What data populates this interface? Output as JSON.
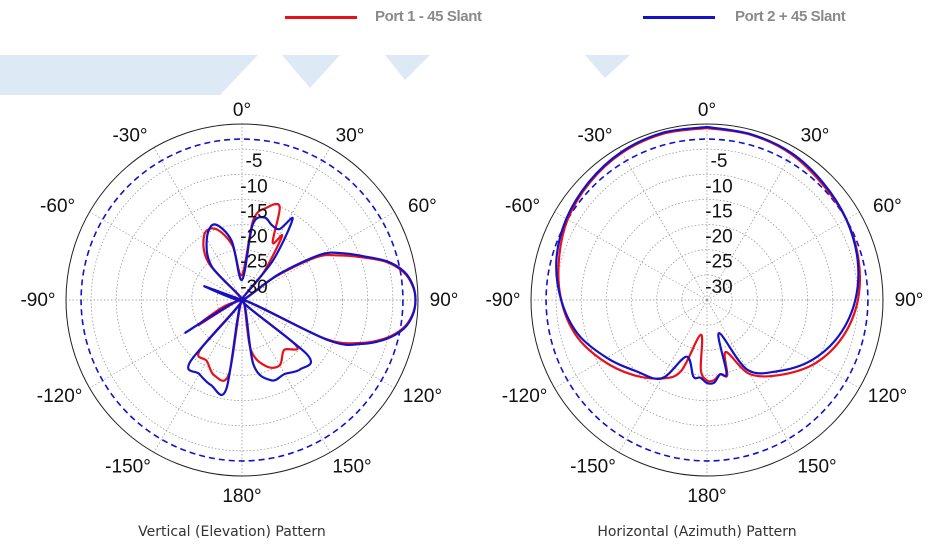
{
  "colors": {
    "port1": "#e8101a",
    "port2": "#1212c8",
    "reference": "#1212c8",
    "grid": "#8c8c8c",
    "watermark": "#dde9f5"
  },
  "legend": {
    "items": [
      {
        "label": "Port 1 - 45 Slant",
        "color": "#e8101a"
      },
      {
        "label": "Port 2  + 45 Slant",
        "color": "#1212c8"
      }
    ]
  },
  "chart_data": [
    {
      "type": "polar",
      "title": "",
      "caption": "Vertical (Elevation) Pattern",
      "angle_labels": [
        "0°",
        "30°",
        "60°",
        "90°",
        "120°",
        "150°",
        "180°",
        "-150°",
        "-120°",
        "-90°",
        "-60°",
        "-30°"
      ],
      "radial_labels": [
        "-5",
        "-10",
        "-15",
        "-20",
        "-25",
        "-30"
      ],
      "radial_range_db": [
        -35,
        0
      ],
      "reference_level_db": -3,
      "series": [
        {
          "name": "Port 1 - 45 Slant",
          "color": "#e8101a",
          "theta": [
            -90,
            -70,
            -55,
            -42,
            -30,
            -20,
            -10,
            0,
            8,
            15,
            22,
            28,
            32,
            38,
            45,
            55,
            60,
            65,
            70,
            75,
            80,
            85,
            90,
            95,
            100,
            105,
            110,
            115,
            120,
            130,
            140,
            150,
            160,
            170,
            180,
            -170,
            -160,
            -150,
            -140,
            -130,
            -120,
            -110,
            -100,
            -90
          ],
          "r_db": [
            -35,
            -29,
            -35,
            -25,
            -20,
            -20,
            -24,
            -30,
            -19,
            -16,
            -15,
            -22,
            -20,
            -28,
            -35,
            -27,
            -18,
            -14,
            -10,
            -5.5,
            -2.5,
            -1,
            -0.5,
            -1,
            -2.5,
            -5.5,
            -10,
            -17,
            -35,
            -21,
            -22,
            -20,
            -21,
            -25,
            -35,
            -20,
            -19,
            -21,
            -22,
            -35,
            -25,
            -31,
            -35,
            -35
          ]
        },
        {
          "name": "Port 2  + 45 Slant",
          "color": "#1212c8",
          "theta": [
            -90,
            -70,
            -55,
            -42,
            -30,
            -20,
            -10,
            0,
            8,
            15,
            22,
            28,
            32,
            38,
            45,
            55,
            60,
            65,
            70,
            75,
            80,
            85,
            90,
            95,
            100,
            105,
            110,
            115,
            120,
            130,
            140,
            150,
            160,
            170,
            180,
            -170,
            -160,
            -150,
            -140,
            -130,
            -120,
            -110,
            -100,
            -90
          ],
          "r_db": [
            -35,
            -27,
            -35,
            -26,
            -21,
            -19,
            -23,
            -31,
            -20,
            -18,
            -19,
            -19,
            -16,
            -25,
            -35,
            -26,
            -17,
            -13,
            -9.5,
            -5.2,
            -2.3,
            -0.9,
            -0.5,
            -0.9,
            -2.3,
            -5.2,
            -9.5,
            -16,
            -35,
            -18,
            -17,
            -18,
            -18,
            -22,
            -35,
            -17,
            -17,
            -18,
            -19,
            -35,
            -22,
            -33,
            -35,
            -35
          ]
        }
      ]
    },
    {
      "type": "polar",
      "title": "",
      "caption": "Horizontal (Azimuth) Pattern",
      "angle_labels": [
        "0°",
        "30°",
        "60°",
        "90°",
        "120°",
        "150°",
        "180°",
        "-150°",
        "-120°",
        "-90°",
        "-60°",
        "-30°"
      ],
      "radial_labels": [
        "-5",
        "-10",
        "-15",
        "-20",
        "-25",
        "-30"
      ],
      "radial_range_db": [
        -35,
        0
      ],
      "reference_level_db": -3,
      "series": [
        {
          "name": "Port 1 - 45 Slant",
          "color": "#e8101a",
          "theta": [
            0,
            15,
            30,
            45,
            60,
            75,
            90,
            105,
            120,
            135,
            150,
            160,
            165,
            170,
            175,
            180,
            -175,
            -170,
            -160,
            -150,
            -135,
            -120,
            -105,
            -90,
            -75,
            -60,
            -45,
            -30,
            -15,
            0
          ],
          "r_db": [
            -0.8,
            -1,
            -1.5,
            -2.5,
            -3,
            -3.8,
            -5,
            -7,
            -10,
            -14,
            -18,
            -24,
            -19.5,
            -20,
            -19,
            -19,
            -21,
            -28,
            -20,
            -17,
            -14,
            -11,
            -8,
            -6,
            -4.5,
            -3,
            -2,
            -1.2,
            -0.8,
            -0.8
          ]
        },
        {
          "name": "Port 2  + 45 Slant",
          "color": "#1212c8",
          "theta": [
            0,
            15,
            30,
            45,
            60,
            75,
            90,
            105,
            120,
            135,
            150,
            160,
            165,
            170,
            175,
            180,
            -175,
            -170,
            -160,
            -150,
            -135,
            -120,
            -105,
            -90,
            -75,
            -60,
            -45,
            -30,
            -15,
            0
          ],
          "r_db": [
            -0.6,
            -0.9,
            -1.3,
            -2.2,
            -3,
            -4,
            -5.5,
            -7.8,
            -11,
            -15,
            -19,
            -28,
            -20,
            -20,
            -18.5,
            -18.5,
            -19.5,
            -19.5,
            -23,
            -17,
            -15,
            -12,
            -8.5,
            -6,
            -4,
            -2.7,
            -1.8,
            -1,
            -0.6,
            -0.6
          ]
        }
      ]
    }
  ]
}
